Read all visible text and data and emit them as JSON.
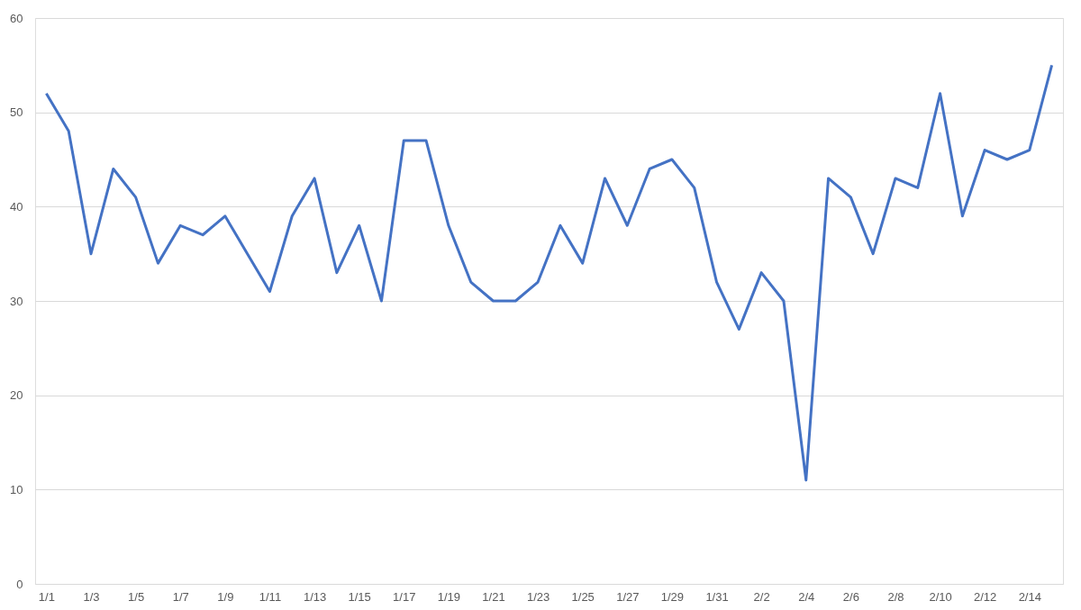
{
  "chart_data": {
    "type": "line",
    "categories": [
      "1/1",
      null,
      "1/3",
      null,
      "1/5",
      null,
      "1/7",
      null,
      "1/9",
      null,
      "1/11",
      null,
      "1/13",
      null,
      "1/15",
      null,
      "1/17",
      null,
      "1/19",
      null,
      "1/21",
      null,
      "1/23",
      null,
      "1/25",
      null,
      "1/27",
      null,
      "1/29",
      null,
      "1/31",
      null,
      "2/2",
      null,
      "2/4",
      null,
      "2/6",
      null,
      "2/8",
      null,
      "2/10",
      null,
      "2/12",
      null,
      "2/14",
      null
    ],
    "series": [
      {
        "color": "#4472c4",
        "values": [
          52,
          48,
          35,
          44,
          41,
          34,
          38,
          37,
          39,
          35,
          31,
          39,
          43,
          33,
          38,
          30,
          47,
          47,
          38,
          32,
          30,
          30,
          32,
          38,
          34,
          43,
          38,
          44,
          45,
          42,
          32,
          27,
          33,
          30,
          11,
          43,
          41,
          35,
          43,
          42,
          52,
          39,
          46,
          45,
          46,
          55
        ]
      }
    ],
    "ylim": [
      0,
      60
    ],
    "yticks": [
      0,
      10,
      20,
      30,
      40,
      50,
      60
    ],
    "grid": "y",
    "marker": "none",
    "line_style": "solid"
  }
}
